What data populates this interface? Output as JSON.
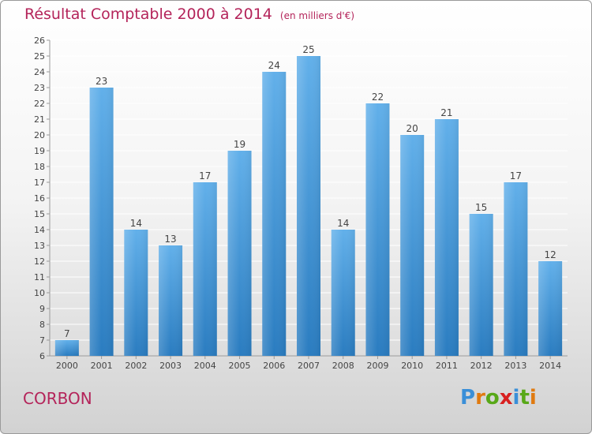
{
  "title": "Résultat Comptable 2000 à 2014",
  "unit_note": "(en milliers d'€)",
  "place": "CORBON",
  "logo": {
    "text": "Proxiti",
    "letters": [
      "P",
      "r",
      "o",
      "x",
      "i",
      "t",
      "i"
    ],
    "colors": [
      "#3a8fd8",
      "#e07a10",
      "#58a818",
      "#d82020",
      "#3a8fd8",
      "#58a818",
      "#e07a10"
    ]
  },
  "colors": {
    "title": "#b4245a",
    "bar_light": "#62b0ea",
    "bar_dark": "#2a7cc0",
    "grid": "#ffffff"
  },
  "chart_data": {
    "type": "bar",
    "title": "Résultat Comptable 2000 à 2014",
    "subtitle": "(en milliers d'€)",
    "categories": [
      "2000",
      "2001",
      "2002",
      "2003",
      "2004",
      "2005",
      "2006",
      "2007",
      "2008",
      "2009",
      "2010",
      "2011",
      "2012",
      "2013",
      "2014"
    ],
    "values": [
      7,
      23,
      14,
      13,
      17,
      19,
      24,
      25,
      14,
      22,
      20,
      21,
      15,
      17,
      12
    ],
    "ylim": [
      6,
      26
    ],
    "yticks": [
      6,
      7,
      8,
      9,
      10,
      11,
      12,
      13,
      14,
      15,
      16,
      17,
      18,
      19,
      20,
      21,
      22,
      23,
      24,
      25,
      26
    ],
    "grid": true,
    "xlabel": "",
    "ylabel": ""
  }
}
